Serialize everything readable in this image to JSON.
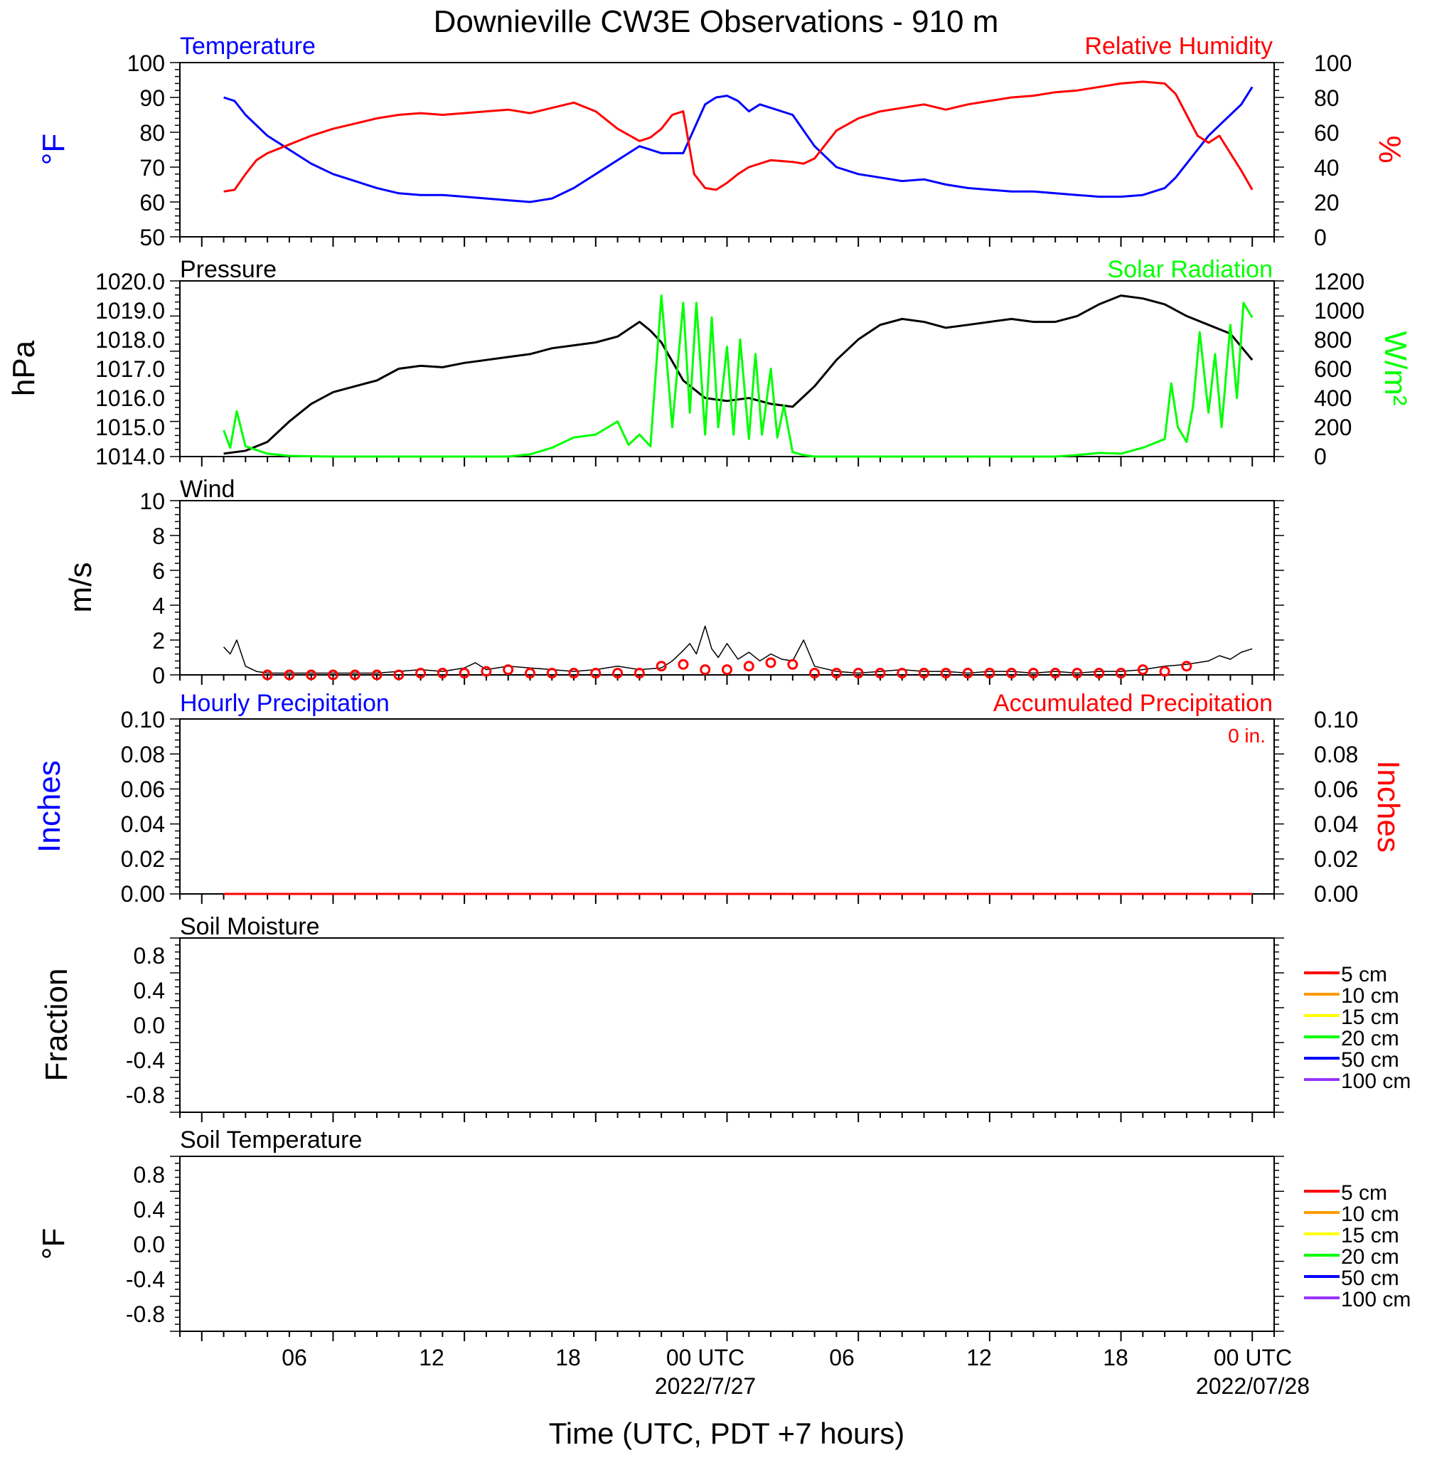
{
  "title": "Downieville CW3E Observations - 910 m",
  "x_axis": {
    "title": "Time (UTC, PDT +7 hours)",
    "ticks": [
      "06",
      "12",
      "18",
      "00 UTC",
      "06",
      "12",
      "18",
      "00 UTC"
    ],
    "dates": [
      "2022/7/27",
      "2022/07/28"
    ]
  },
  "colors": {
    "temperature": "#0000ff",
    "humidity": "#ff0000",
    "pressure": "#000000",
    "solar": "#00ff00",
    "wind": "#000000",
    "barb": "#ff0000",
    "precip": "#ff0000"
  },
  "chart_data": [
    {
      "type": "line",
      "panel": "temperature-humidity",
      "x_unit": "hours since 2022-07-26 01:00 UTC",
      "ylim": [
        50,
        100
      ],
      "y2lim": [
        0,
        100
      ],
      "ylabel": "°F",
      "y2label": "%",
      "yticks": [
        "100",
        "90",
        "80",
        "70",
        "60",
        "50"
      ],
      "y2ticks": [
        "100",
        "80",
        "60",
        "40",
        "20",
        "0"
      ],
      "series": [
        {
          "name": "Temperature",
          "axis": "left",
          "x": [
            0,
            0.5,
            1,
            2,
            3,
            4,
            5,
            6,
            7,
            8,
            9,
            10,
            11,
            12,
            13,
            14,
            15,
            16,
            17,
            18,
            18.5,
            19,
            20,
            21,
            22,
            22.5,
            23,
            23.5,
            24,
            24.5,
            25,
            26,
            27,
            28,
            29,
            30,
            31,
            32,
            33,
            34,
            35,
            36,
            37,
            38,
            39,
            40,
            41,
            42,
            43,
            43.5,
            44,
            44.5,
            45,
            45.5,
            46,
            46.5,
            47
          ],
          "y": [
            90,
            89,
            85,
            79,
            75,
            71,
            68,
            66,
            64,
            62.5,
            62,
            62,
            61.5,
            61,
            60.5,
            60,
            61,
            64,
            68,
            72,
            74,
            76,
            74,
            74,
            88,
            90,
            90.5,
            89,
            86,
            88,
            87,
            85,
            76,
            70,
            68,
            67,
            66,
            66.5,
            65,
            64,
            63.5,
            63,
            63,
            62.5,
            62,
            61.5,
            61.5,
            62,
            64,
            67,
            71,
            75,
            79,
            82,
            85,
            88,
            93
          ]
        },
        {
          "name": "Relative Humidity",
          "axis": "right",
          "x": [
            0,
            0.5,
            1,
            1.5,
            2,
            3,
            4,
            5,
            6,
            7,
            8,
            9,
            10,
            11,
            12,
            13,
            14,
            15,
            16,
            17,
            18,
            19,
            19.5,
            20,
            20.5,
            21,
            21.5,
            22,
            22.5,
            23,
            23.5,
            24,
            25,
            26,
            26.5,
            27,
            28,
            29,
            30,
            31,
            32,
            33,
            34,
            35,
            36,
            37,
            38,
            39,
            40,
            41,
            42,
            43,
            43.5,
            44,
            44.5,
            45,
            45.5,
            46,
            46.5,
            47
          ],
          "y": [
            26,
            27,
            36,
            44,
            48,
            53,
            58,
            62,
            65,
            68,
            70,
            71,
            70,
            71,
            72,
            73,
            71,
            74,
            77,
            72,
            62,
            55,
            57,
            62,
            70,
            72,
            36,
            28,
            27,
            31,
            36,
            40,
            44,
            43,
            42,
            45,
            61,
            68,
            72,
            74,
            76,
            73,
            76,
            78,
            80,
            81,
            83,
            84,
            86,
            88,
            89,
            88,
            82,
            70,
            58,
            54,
            58,
            48,
            38,
            27
          ]
        }
      ]
    },
    {
      "type": "line",
      "panel": "pressure-solar",
      "x_unit": "hours since 2022-07-26 01:00 UTC",
      "ylim": [
        1014,
        1020
      ],
      "y2lim": [
        0,
        1200
      ],
      "ylabel": "hPa",
      "y2label": "W/m²",
      "yticks": [
        "1020.0",
        "1019.0",
        "1018.0",
        "1017.0",
        "1016.0",
        "1015.0",
        "1014.0"
      ],
      "y2ticks": [
        "1200",
        "1000",
        "800",
        "600",
        "400",
        "200",
        "0"
      ],
      "series": [
        {
          "name": "Pressure",
          "axis": "left",
          "x": [
            0,
            1,
            2,
            3,
            4,
            5,
            6,
            7,
            8,
            9,
            10,
            11,
            12,
            13,
            14,
            15,
            16,
            17,
            18,
            19,
            19.5,
            20,
            21,
            22,
            23,
            24,
            25,
            26,
            27,
            28,
            29,
            30,
            31,
            32,
            33,
            34,
            35,
            36,
            37,
            38,
            39,
            40,
            41,
            42,
            43,
            44,
            45,
            46,
            47
          ],
          "y": [
            1014.1,
            1014.2,
            1014.5,
            1015.2,
            1015.8,
            1016.2,
            1016.4,
            1016.6,
            1017.0,
            1017.1,
            1017.05,
            1017.2,
            1017.3,
            1017.4,
            1017.5,
            1017.7,
            1017.8,
            1017.9,
            1018.1,
            1018.6,
            1018.3,
            1017.9,
            1016.6,
            1016.0,
            1015.9,
            1016.0,
            1015.8,
            1015.7,
            1016.4,
            1017.3,
            1018.0,
            1018.5,
            1018.7,
            1018.6,
            1018.4,
            1018.5,
            1018.6,
            1018.7,
            1018.6,
            1018.6,
            1018.8,
            1019.2,
            1019.5,
            1019.4,
            1019.2,
            1018.8,
            1018.5,
            1018.2,
            1017.3
          ]
        },
        {
          "name": "Solar Radiation",
          "axis": "right",
          "x": [
            0,
            0.3,
            0.6,
            1,
            2,
            3,
            4,
            5,
            6,
            7,
            8,
            9,
            10,
            11,
            12,
            13,
            14,
            15,
            16,
            17,
            18,
            18.5,
            19,
            19.5,
            20,
            20.5,
            21,
            21.3,
            21.6,
            22,
            22.3,
            22.6,
            23,
            23.3,
            23.6,
            24,
            24.3,
            24.6,
            25,
            25.3,
            25.6,
            26,
            26.5,
            27,
            28,
            29,
            30,
            31,
            32,
            33,
            34,
            35,
            36,
            37,
            38,
            39,
            40,
            41,
            42,
            43,
            43.3,
            43.6,
            44,
            44.3,
            44.6,
            45,
            45.3,
            45.6,
            46,
            46.3,
            46.6,
            47
          ],
          "y": [
            180,
            60,
            310,
            70,
            20,
            5,
            2,
            0,
            0,
            0,
            0,
            0,
            0,
            0,
            0,
            0,
            15,
            60,
            130,
            150,
            240,
            80,
            150,
            70,
            1100,
            200,
            1050,
            300,
            1050,
            150,
            950,
            200,
            750,
            150,
            800,
            120,
            700,
            150,
            600,
            130,
            350,
            30,
            10,
            0,
            0,
            0,
            0,
            0,
            0,
            0,
            0,
            0,
            0,
            0,
            0,
            10,
            25,
            20,
            60,
            120,
            500,
            200,
            100,
            350,
            850,
            300,
            700,
            200,
            900,
            400,
            1050,
            950
          ]
        }
      ]
    },
    {
      "type": "line",
      "panel": "wind",
      "x_unit": "hours since 2022-07-26 01:00 UTC",
      "ylim": [
        0,
        10
      ],
      "ylabel": "m/s",
      "yticks": [
        "10",
        "8",
        "6",
        "4",
        "2",
        "0"
      ],
      "series": [
        {
          "name": "Wind",
          "axis": "left",
          "x": [
            0,
            0.3,
            0.6,
            1,
            1.5,
            2,
            3,
            4,
            5,
            6,
            7,
            8,
            9,
            10,
            11,
            11.5,
            12,
            13,
            14,
            15,
            16,
            17,
            18,
            19,
            20,
            20.5,
            21,
            21.3,
            21.6,
            22,
            22.3,
            22.6,
            23,
            23.5,
            24,
            24.5,
            25,
            25.5,
            26,
            26.5,
            27,
            28,
            29,
            30,
            31,
            32,
            33,
            34,
            35,
            36,
            37,
            38,
            39,
            40,
            41,
            42,
            43,
            44,
            45,
            45.5,
            46,
            46.5,
            47
          ],
          "y": [
            1.6,
            1.2,
            2.0,
            0.5,
            0.2,
            0.1,
            0.1,
            0.1,
            0.1,
            0.1,
            0.1,
            0.2,
            0.3,
            0.2,
            0.4,
            0.7,
            0.3,
            0.5,
            0.4,
            0.3,
            0.2,
            0.3,
            0.5,
            0.3,
            0.4,
            0.8,
            1.4,
            1.8,
            1.2,
            2.8,
            1.5,
            1.0,
            1.8,
            0.9,
            1.3,
            0.8,
            1.2,
            0.9,
            0.8,
            2.0,
            0.5,
            0.2,
            0.1,
            0.2,
            0.3,
            0.2,
            0.2,
            0.1,
            0.2,
            0.2,
            0.1,
            0.2,
            0.1,
            0.2,
            0.2,
            0.3,
            0.5,
            0.6,
            0.8,
            1.1,
            0.9,
            1.3,
            1.5
          ]
        }
      ],
      "barbs_x": [
        2,
        3,
        4,
        5,
        6,
        7,
        8,
        9,
        10,
        11,
        12,
        13,
        14,
        15,
        16,
        17,
        18,
        19,
        20,
        21,
        22,
        23,
        24,
        25,
        26,
        27,
        28,
        29,
        30,
        31,
        32,
        33,
        34,
        35,
        36,
        37,
        38,
        39,
        40,
        41,
        42,
        43,
        44
      ],
      "barbs_speed": [
        0,
        0,
        0,
        0,
        0,
        0,
        0,
        0.1,
        0.1,
        0.1,
        0.2,
        0.3,
        0.1,
        0.1,
        0.1,
        0.1,
        0.1,
        0.1,
        0.5,
        0.6,
        0.3,
        0.3,
        0.5,
        0.7,
        0.6,
        0.1,
        0.1,
        0.1,
        0.1,
        0.1,
        0.1,
        0.1,
        0.1,
        0.1,
        0.1,
        0.1,
        0.1,
        0.1,
        0.1,
        0.1,
        0.3,
        0.2,
        0.5
      ]
    },
    {
      "type": "line",
      "panel": "precipitation",
      "x_unit": "hours since 2022-07-26 01:00 UTC",
      "ylim": [
        0,
        0.1
      ],
      "y2lim": [
        0,
        0.1
      ],
      "ylabel": "Inches",
      "y2label": "Inches",
      "yticks": [
        "0.10",
        "0.08",
        "0.06",
        "0.04",
        "0.02",
        "0.00"
      ],
      "y2ticks": [
        "0.10",
        "0.08",
        "0.06",
        "0.04",
        "0.02",
        "0.00"
      ],
      "annotation": "0 in.",
      "series": [
        {
          "name": "Hourly Precipitation",
          "axis": "left",
          "x": [
            0,
            47
          ],
          "y": [
            0,
            0
          ]
        },
        {
          "name": "Accumulated Precipitation",
          "axis": "right",
          "x": [
            0,
            47
          ],
          "y": [
            0,
            0
          ]
        }
      ]
    },
    {
      "type": "line",
      "panel": "soil-moisture",
      "title": "Soil Moisture",
      "ylim": [
        -1,
        1
      ],
      "ylabel": "Fraction",
      "yticks": [
        "0.8",
        "0.4",
        "0.0",
        "-0.4",
        "-0.8"
      ],
      "legend": [
        {
          "label": "5 cm",
          "color": "#ff0000"
        },
        {
          "label": "10 cm",
          "color": "#ff9900"
        },
        {
          "label": "15 cm",
          "color": "#ffff00"
        },
        {
          "label": "20 cm",
          "color": "#00ff00"
        },
        {
          "label": "50 cm",
          "color": "#0000ff"
        },
        {
          "label": "100 cm",
          "color": "#9933ff"
        }
      ],
      "series": []
    },
    {
      "type": "line",
      "panel": "soil-temperature",
      "title": "Soil Temperature",
      "ylim": [
        -1,
        1
      ],
      "ylabel": "°F",
      "yticks": [
        "0.8",
        "0.4",
        "0.0",
        "-0.4",
        "-0.8"
      ],
      "legend": [
        {
          "label": "5 cm",
          "color": "#ff0000"
        },
        {
          "label": "10 cm",
          "color": "#ff9900"
        },
        {
          "label": "15 cm",
          "color": "#ffff00"
        },
        {
          "label": "20 cm",
          "color": "#00ff00"
        },
        {
          "label": "50 cm",
          "color": "#0000ff"
        },
        {
          "label": "100 cm",
          "color": "#9933ff"
        }
      ],
      "series": []
    }
  ]
}
